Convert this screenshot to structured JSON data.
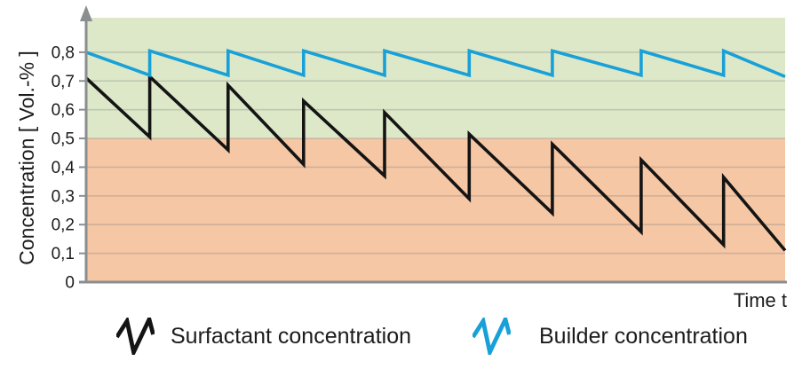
{
  "chart_data": {
    "type": "line",
    "title": "",
    "xlabel": "Time t",
    "ylabel": "Concentration [ Vol.-% ]",
    "ylim": [
      0,
      0.92
    ],
    "xlim_note": "time axis unlabeled, normalized 0-100",
    "grid": true,
    "legend_position": "bottom",
    "yticks": [
      {
        "v": 0.0,
        "label": "0"
      },
      {
        "v": 0.1,
        "label": "0,1"
      },
      {
        "v": 0.2,
        "label": "0,2"
      },
      {
        "v": 0.3,
        "label": "0,3"
      },
      {
        "v": 0.4,
        "label": "0,4"
      },
      {
        "v": 0.5,
        "label": "0,5"
      },
      {
        "v": 0.6,
        "label": "0,6"
      },
      {
        "v": 0.7,
        "label": "0,7"
      },
      {
        "v": 0.8,
        "label": "0,8"
      }
    ],
    "threshold": 0.5,
    "zones": [
      {
        "name": "zone-above-threshold",
        "from": 0.5,
        "to": 0.92,
        "color": "#dce8c8"
      },
      {
        "name": "zone-below-threshold",
        "from": 0.0,
        "to": 0.5,
        "color": "#f5c7a5"
      }
    ],
    "series": [
      {
        "name": "Surfactant concentration",
        "color": "#141414",
        "points": [
          [
            0,
            0.71
          ],
          [
            9.1,
            0.505
          ],
          [
            9.1,
            0.715
          ],
          [
            20.3,
            0.46
          ],
          [
            20.3,
            0.685
          ],
          [
            31.1,
            0.41
          ],
          [
            31.1,
            0.63
          ],
          [
            42.7,
            0.37
          ],
          [
            42.7,
            0.59
          ],
          [
            54.8,
            0.29
          ],
          [
            54.8,
            0.515
          ],
          [
            66.7,
            0.24
          ],
          [
            66.7,
            0.48
          ],
          [
            79.4,
            0.175
          ],
          [
            79.4,
            0.425
          ],
          [
            91.2,
            0.13
          ],
          [
            91.2,
            0.365
          ],
          [
            100,
            0.11
          ]
        ]
      },
      {
        "name": "Builder concentration",
        "color": "#18a0d8",
        "points": [
          [
            0,
            0.8
          ],
          [
            9.1,
            0.72
          ],
          [
            9.1,
            0.805
          ],
          [
            20.3,
            0.72
          ],
          [
            20.3,
            0.805
          ],
          [
            31.1,
            0.72
          ],
          [
            31.1,
            0.805
          ],
          [
            42.7,
            0.72
          ],
          [
            42.7,
            0.805
          ],
          [
            54.8,
            0.72
          ],
          [
            54.8,
            0.805
          ],
          [
            66.7,
            0.72
          ],
          [
            66.7,
            0.805
          ],
          [
            79.4,
            0.72
          ],
          [
            79.4,
            0.805
          ],
          [
            91.2,
            0.72
          ],
          [
            91.2,
            0.805
          ],
          [
            100,
            0.715
          ]
        ]
      }
    ]
  },
  "axes": {
    "x_title": "Time t",
    "y_title": "Concentration [ Vol.-% ]"
  },
  "legend": {
    "items": [
      {
        "label": "Surfactant concentration",
        "color": "#141414"
      },
      {
        "label": "Builder concentration",
        "color": "#18a0d8"
      }
    ]
  }
}
